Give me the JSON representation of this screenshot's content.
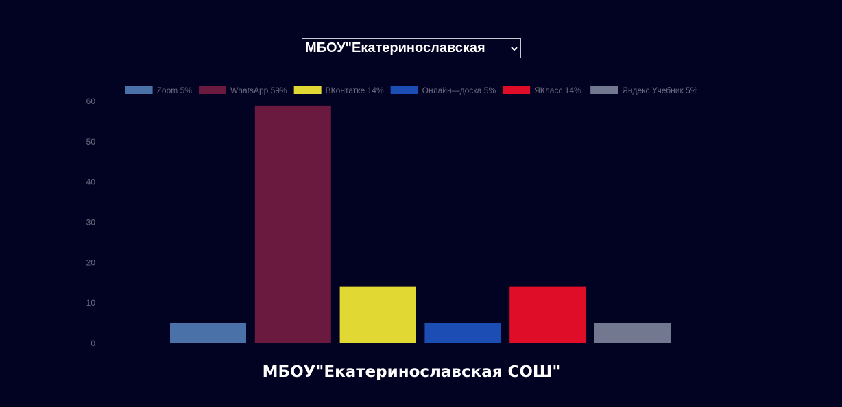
{
  "selector": {
    "value": "МБОУ\"Екатеринославская"
  },
  "chart_data": {
    "type": "bar",
    "title": "МБОУ\"Екатеринославская СОШ\"",
    "xlabel": "",
    "ylabel": "",
    "ylim": [
      0,
      60
    ],
    "yticks": [
      0,
      10,
      20,
      30,
      40,
      50,
      60
    ],
    "grid": false,
    "legend_position": "top",
    "series": [
      {
        "name": "Zoom 5%",
        "value": 5,
        "color": "#4a72a8"
      },
      {
        "name": "WhatsApp 59%",
        "value": 59,
        "color": "#6a1a3e"
      },
      {
        "name": "ВКонтатке 14%",
        "value": 14,
        "color": "#e1d833"
      },
      {
        "name": "Онлайн—доска 5%",
        "value": 5,
        "color": "#1c4db4"
      },
      {
        "name": "ЯКласс  14%",
        "value": 14,
        "color": "#e00d28"
      },
      {
        "name": "Яндекс Учебник 5%",
        "value": 5,
        "color": "#737891"
      }
    ]
  }
}
